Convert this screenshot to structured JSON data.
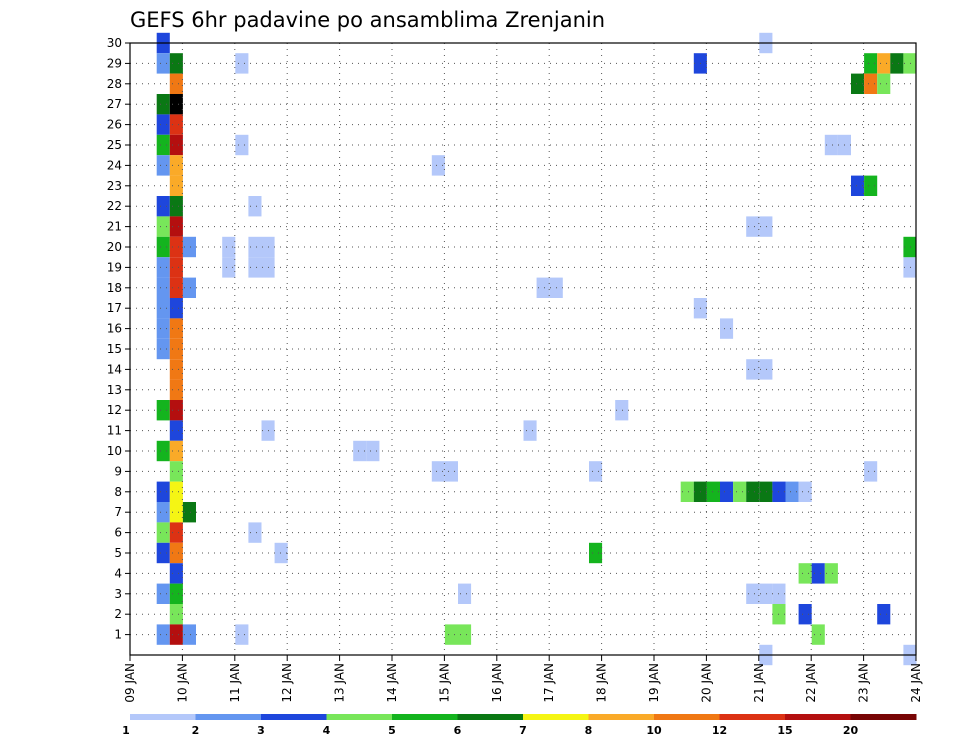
{
  "chart_data": {
    "type": "heatmap",
    "title": "GEFS 6hr padavine po ansamblima Zrenjanin",
    "xlabel": "",
    "ylabel": "",
    "x_ticks": [
      "09 JAN",
      "10 JAN",
      "11 JAN",
      "12 JAN",
      "13 JAN",
      "14 JAN",
      "15 JAN",
      "16 JAN",
      "17 JAN",
      "18 JAN",
      "19 JAN",
      "20 JAN",
      "21 JAN",
      "22 JAN",
      "23 JAN",
      "24 JAN"
    ],
    "y_ticks": [
      "1",
      "2",
      "3",
      "4",
      "5",
      "6",
      "7",
      "8",
      "9",
      "10",
      "11",
      "12",
      "13",
      "14",
      "15",
      "16",
      "17",
      "18",
      "19",
      "20",
      "21",
      "22",
      "23",
      "24",
      "25",
      "26",
      "27",
      "28",
      "29",
      "30"
    ],
    "x_unit": "days since 09 JAN 00Z",
    "xlim": [
      0,
      15
    ],
    "ylim": [
      0,
      30
    ],
    "grid": true,
    "colorbar": {
      "colors": [
        "#b4c8fa",
        "#6496f0",
        "#1e46dc",
        "#78e65a",
        "#14b41e",
        "#0a7814",
        "#f5f514",
        "#faaa28",
        "#f07814",
        "#dc3214",
        "#b40f0f",
        "#780505"
      ],
      "labels": [
        "1",
        "2",
        "3",
        "4",
        "5",
        "6",
        "7",
        "8",
        "10",
        "12",
        "15",
        "20"
      ]
    },
    "cells": [
      {
        "member": 30,
        "t": [
          0.5
        ],
        "class": [
          2
        ]
      },
      {
        "member": 29,
        "t": [
          0.5,
          0.75
        ],
        "class": [
          1,
          5
        ]
      },
      {
        "member": 28,
        "t": [
          0.75
        ],
        "class": [
          8
        ]
      },
      {
        "member": 27,
        "t": [
          0.5,
          0.75
        ],
        "class": [
          5,
          12
        ]
      },
      {
        "member": 26,
        "t": [
          0.5,
          0.75
        ],
        "class": [
          2,
          9
        ]
      },
      {
        "member": 25,
        "t": [
          0.5,
          0.75
        ],
        "class": [
          4,
          10
        ]
      },
      {
        "member": 24,
        "t": [
          0.5,
          0.75
        ],
        "class": [
          1,
          7
        ]
      },
      {
        "member": 23,
        "t": [
          0.75
        ],
        "class": [
          7
        ]
      },
      {
        "member": 22,
        "t": [
          0.5,
          0.75
        ],
        "class": [
          2,
          5
        ]
      },
      {
        "member": 21,
        "t": [
          0.5,
          0.75
        ],
        "class": [
          3,
          10
        ]
      },
      {
        "member": 20,
        "t": [
          0.5,
          0.75,
          1.0
        ],
        "class": [
          4,
          9,
          1
        ]
      },
      {
        "member": 19,
        "t": [
          0.5,
          0.75
        ],
        "class": [
          1,
          9
        ]
      },
      {
        "member": 18,
        "t": [
          0.5,
          0.75,
          1.0
        ],
        "class": [
          1,
          9,
          1
        ]
      },
      {
        "member": 17,
        "t": [
          0.5,
          0.75
        ],
        "class": [
          1,
          2
        ]
      },
      {
        "member": 16,
        "t": [
          0.5,
          0.75
        ],
        "class": [
          1,
          8
        ]
      },
      {
        "member": 15,
        "t": [
          0.5,
          0.75
        ],
        "class": [
          1,
          8
        ]
      },
      {
        "member": 14,
        "t": [
          0.75
        ],
        "class": [
          8
        ]
      },
      {
        "member": 13,
        "t": [
          0.75
        ],
        "class": [
          8
        ]
      },
      {
        "member": 12,
        "t": [
          0.5,
          0.75
        ],
        "class": [
          4,
          10
        ]
      },
      {
        "member": 11,
        "t": [
          0.75
        ],
        "class": [
          2
        ]
      },
      {
        "member": 10,
        "t": [
          0.5,
          0.75
        ],
        "class": [
          4,
          7
        ]
      },
      {
        "member": 9,
        "t": [
          0.75
        ],
        "class": [
          3
        ]
      },
      {
        "member": 8,
        "t": [
          0.5,
          0.75,
          10.5,
          10.75,
          11.0,
          11.25,
          11.5,
          11.75,
          12.0,
          12.25,
          12.5,
          12.75
        ],
        "class": [
          2,
          6,
          3,
          5,
          4,
          2,
          3,
          5,
          5,
          2,
          1,
          0
        ]
      },
      {
        "member": 7,
        "t": [
          0.5,
          0.75,
          1.0
        ],
        "class": [
          1,
          6,
          5
        ]
      },
      {
        "member": 6,
        "t": [
          0.5,
          0.75
        ],
        "class": [
          3,
          9
        ]
      },
      {
        "member": 5,
        "t": [
          0.5,
          0.75
        ],
        "class": [
          2,
          8
        ]
      },
      {
        "member": 4,
        "t": [
          0.75,
          12.75,
          13.0,
          13.25
        ],
        "class": [
          2,
          3,
          2,
          3
        ]
      },
      {
        "member": 3,
        "t": [
          0.5,
          0.75
        ],
        "class": [
          1,
          4
        ]
      },
      {
        "member": 2,
        "t": [
          0.75,
          12.25,
          12.75,
          14.25
        ],
        "class": [
          3,
          3,
          2,
          2
        ]
      },
      {
        "member": 1,
        "t": [
          0.5,
          0.75,
          1.0,
          6.0,
          6.25,
          13.0
        ],
        "class": [
          1,
          10,
          1,
          3,
          3,
          3
        ]
      },
      {
        "member": 29,
        "t": [
          10.75,
          14.0,
          14.25,
          14.5,
          14.75
        ],
        "class": [
          2,
          4,
          7,
          5,
          3
        ]
      },
      {
        "member": 28,
        "t": [
          13.75,
          14.0,
          14.25
        ],
        "class": [
          5,
          8,
          3
        ]
      },
      {
        "member": 23,
        "t": [
          13.75,
          14.0
        ],
        "class": [
          2,
          4
        ]
      },
      {
        "member": 20,
        "t": [
          14.75
        ],
        "class": [
          4
        ]
      },
      {
        "member": 5,
        "t": [
          8.75
        ],
        "class": [
          4
        ]
      }
    ],
    "light_cells": [
      {
        "member": 30,
        "t": [
          12.0
        ]
      },
      {
        "member": 29,
        "t": [
          2.0
        ]
      },
      {
        "member": 25,
        "t": [
          2.0,
          13.25,
          13.5
        ]
      },
      {
        "member": 24,
        "t": [
          5.75
        ]
      },
      {
        "member": 22,
        "t": [
          2.25
        ]
      },
      {
        "member": 21,
        "t": [
          11.75,
          12.0
        ]
      },
      {
        "member": 20,
        "t": [
          1.75,
          2.25,
          2.5
        ]
      },
      {
        "member": 19,
        "t": [
          1.75,
          2.25,
          2.5,
          14.75
        ]
      },
      {
        "member": 18,
        "t": [
          7.75,
          8.0
        ]
      },
      {
        "member": 17,
        "t": [
          10.75
        ]
      },
      {
        "member": 16,
        "t": [
          11.25
        ]
      },
      {
        "member": 14,
        "t": [
          11.75,
          12.0
        ]
      },
      {
        "member": 12,
        "t": [
          9.25
        ]
      },
      {
        "member": 11,
        "t": [
          2.5,
          7.5
        ]
      },
      {
        "member": 10,
        "t": [
          4.25,
          4.5
        ]
      },
      {
        "member": 9,
        "t": [
          5.75,
          6.0,
          8.75,
          14.0
        ]
      },
      {
        "member": 6,
        "t": [
          2.25
        ]
      },
      {
        "member": 5,
        "t": [
          2.75
        ]
      },
      {
        "member": 3,
        "t": [
          6.25,
          11.75,
          12.0,
          12.25
        ]
      },
      {
        "member": 1,
        "t": [
          2.0
        ]
      },
      {
        "member": 0,
        "t": [
          12.0,
          14.75
        ]
      }
    ]
  }
}
